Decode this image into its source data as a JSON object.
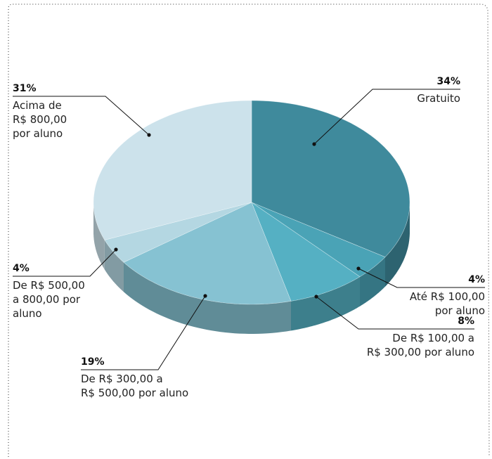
{
  "chart_data": {
    "type": "pie",
    "categories": [
      "Gratuito",
      "Até R$ 100,00\npor aluno",
      "De R$ 100,00 a\nR$ 300,00 por aluno",
      "De R$ 300,00 a\nR$ 500,00 por aluno",
      "De  R$ 500,00\na 800,00 por\naluno",
      "Acima de\nR$ 800,00\npor aluno"
    ],
    "values": [
      34,
      4,
      8,
      19,
      4,
      31
    ],
    "value_labels": [
      "34%",
      "4%",
      "8%",
      "19%",
      "4%",
      "31%"
    ],
    "colors": [
      "#3f8a9c",
      "#4aa3b6",
      "#55b0c3",
      "#86c2d2",
      "#b4d7e2",
      "#cce2eb"
    ]
  }
}
